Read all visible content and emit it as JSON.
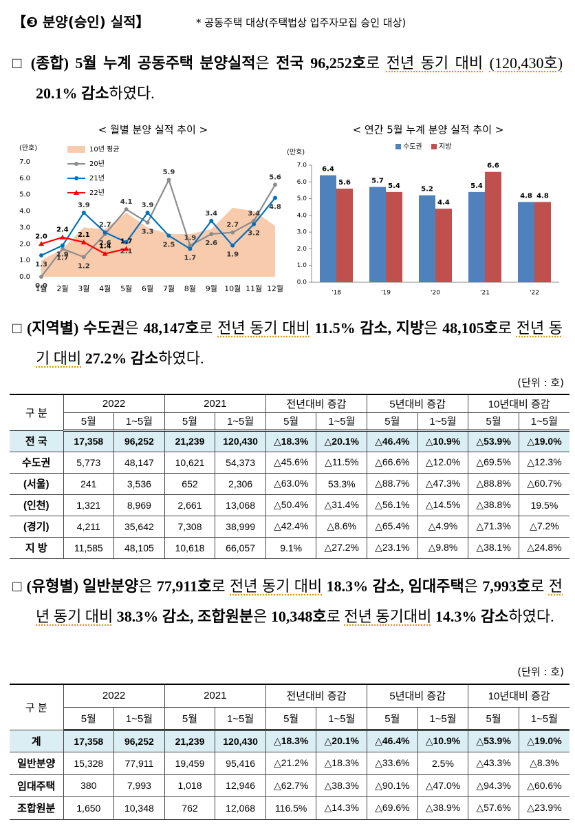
{
  "header": {
    "title": "【❸ 분양(승인) 실적】",
    "note": "* 공동주택 대상(주택법상 입주자모집 승인 대상)"
  },
  "paragraphs": [
    [
      "□",
      "(종합) 5월 누계 공동주택 분양실적",
      "은",
      "전국 96,252호",
      "로",
      "전년 동기 대비",
      "(120,430호)",
      "20.1% 감소",
      "하였다."
    ],
    [
      "□",
      "(지역별) 수도권",
      "은",
      "48,147호",
      "로",
      "전년 동기 대비",
      "11.5% 감소, 지방",
      "은",
      "48,105호",
      "로",
      "전년 동기 대비",
      "27.2% 감소",
      "하였다."
    ],
    [
      "□",
      "(유형별) 일반분양",
      "은",
      "77,911호",
      "로",
      "전년 동기 대비",
      "18.3% 감소, 임대주택",
      "은",
      "7,993호",
      "로",
      "전년 동기 대비",
      "38.3% 감소, 조합원분",
      "은",
      "10,348호",
      "로",
      "전년 동기대비",
      "14.3% 감소",
      "하였다."
    ]
  ],
  "chart_data": [
    {
      "type": "line",
      "title": "< 월별 분양 실적 추이 >",
      "y_label": "(만호)",
      "categories": [
        "1월",
        "2월",
        "3월",
        "4월",
        "5월",
        "6월",
        "7월",
        "8월",
        "9월",
        "10월",
        "11월",
        "12월"
      ],
      "ylim": [
        0,
        7
      ],
      "yticks": [
        {
          "value": 0,
          "label": "0.0"
        },
        {
          "value": 1,
          "label": "1.0"
        },
        {
          "value": 2,
          "label": "2.0"
        },
        {
          "value": 3,
          "label": "3.0"
        },
        {
          "value": 4,
          "label": "4.0"
        },
        {
          "value": 5,
          "label": "5.0"
        },
        {
          "value": 6,
          "label": "6.0"
        },
        {
          "value": 7,
          "label": "7.0"
        }
      ],
      "series": [
        {
          "name": "10년 평균",
          "type": "area",
          "color": "#f8cbad",
          "values": [
            1.0,
            1.7,
            3.0,
            2.9,
            3.9,
            3.0,
            2.6,
            2.6,
            2.9,
            4.2,
            4.0,
            3.1
          ]
        },
        {
          "name": "20년",
          "type": "line",
          "marker": "circle",
          "color": "#8c8c8c",
          "values": [
            0.0,
            1.7,
            1.2,
            2.6,
            4.1,
            3.3,
            5.9,
            1.9,
            2.6,
            2.7,
            3.4,
            5.6
          ],
          "value_labels": [
            "0.0",
            "1.7",
            "1.2",
            "2.6",
            "4.1",
            "3.3",
            "5.9",
            "1.9",
            "2.6",
            "2.7",
            "3.4",
            "5.6"
          ]
        },
        {
          "name": "21년",
          "type": "line",
          "marker": "circle",
          "color": "#0070c0",
          "values": [
            1.3,
            1.9,
            3.9,
            2.7,
            2.1,
            3.9,
            2.5,
            1.7,
            3.4,
            1.9,
            3.2,
            4.8
          ],
          "value_labels": [
            "1.3",
            "1.9",
            "3.9",
            "2.7",
            "2.1",
            "3.9",
            "2.5",
            "1.7",
            "3.4",
            "1.9",
            "3.2",
            "4.8"
          ]
        },
        {
          "name": "22년",
          "type": "line",
          "marker": "triangle",
          "color": "#ff0000",
          "values": [
            2.0,
            2.4,
            2.1,
            1.4,
            1.7,
            null,
            null,
            null,
            null,
            null,
            null,
            null
          ],
          "value_labels": [
            "2.0",
            "2.4",
            "2.1",
            "1.4",
            "1.7",
            null,
            null,
            null,
            null,
            null,
            null,
            null
          ]
        }
      ]
    },
    {
      "type": "bar",
      "title": "< 연간 5월 누계 분양 실적 추이 >",
      "y_label": "(만호)",
      "categories": [
        "'18",
        "'19",
        "'20",
        "'21",
        "'22"
      ],
      "ylim": [
        0,
        7
      ],
      "yticks": [
        {
          "value": 0,
          "label": "0.0"
        },
        {
          "value": 1,
          "label": "1.0"
        },
        {
          "value": 2,
          "label": "2.0"
        },
        {
          "value": 3,
          "label": "3.0"
        },
        {
          "value": 4,
          "label": "4.0"
        },
        {
          "value": 5,
          "label": "5.0"
        },
        {
          "value": 6,
          "label": "6.0"
        },
        {
          "value": 7,
          "label": "7.0"
        }
      ],
      "series": [
        {
          "name": "수도권",
          "color": "#4f81bd",
          "values": [
            6.4,
            5.7,
            5.2,
            5.4,
            4.8
          ]
        },
        {
          "name": "지방",
          "color": "#c0504d",
          "values": [
            5.6,
            5.4,
            4.4,
            6.6,
            4.8
          ]
        }
      ]
    }
  ],
  "tables": [
    {
      "unit": "(단위 : 호)",
      "header": [
        "구 분",
        "2022",
        "2021",
        "전년대비 증감",
        "5년대비 증감",
        "10년대비 증감"
      ],
      "subheader": [
        "5월",
        "1~5월",
        "5월",
        "1~5월",
        "5월",
        "1~5월",
        "5월",
        "1~5월",
        "5월",
        "1~5월"
      ],
      "rows": [
        [
          "전 국",
          "17,358",
          "96,252",
          "21,239",
          "120,430",
          "△18.3%",
          "△20.1%",
          "△46.4%",
          "△10.9%",
          "△53.9%",
          "△19.0%"
        ],
        [
          "수도권",
          "5,773",
          "48,147",
          "10,621",
          "54,373",
          "△45.6%",
          "△11.5%",
          "△66.6%",
          "△12.0%",
          "△69.5%",
          "△12.3%"
        ],
        [
          "(서울)",
          "241",
          "3,536",
          "652",
          "2,306",
          "△63.0%",
          "53.3%",
          "△88.7%",
          "△47.3%",
          "△88.8%",
          "△60.7%"
        ],
        [
          "(인천)",
          "1,321",
          "8,969",
          "2,661",
          "13,068",
          "△50.4%",
          "△31.4%",
          "△56.1%",
          "△14.5%",
          "△38.8%",
          "19.5%"
        ],
        [
          "(경기)",
          "4,211",
          "35,642",
          "7,308",
          "38,999",
          "△42.4%",
          "△8.6%",
          "△65.4%",
          "△4.9%",
          "△71.3%",
          "△7.2%"
        ],
        [
          "지 방",
          "11,585",
          "48,105",
          "10,618",
          "66,057",
          "9.1%",
          "△27.2%",
          "△23.1%",
          "△9.8%",
          "△38.1%",
          "△24.8%"
        ]
      ]
    },
    {
      "unit": "(단위 : 호)",
      "header": [
        "구 분",
        "2022",
        "2021",
        "전년대비 증감",
        "5년대비 증감",
        "10년대비 증감"
      ],
      "subheader": [
        "5월",
        "1~5월",
        "5월",
        "1~5월",
        "5월",
        "1~5월",
        "5월",
        "1~5월",
        "5월",
        "1~5월"
      ],
      "rows": [
        [
          "계",
          "17,358",
          "96,252",
          "21,239",
          "120,430",
          "△18.3%",
          "△20.1%",
          "△46.4%",
          "△10.9%",
          "△53.9%",
          "△19.0%"
        ],
        [
          "일반분양",
          "15,328",
          "77,911",
          "19,459",
          "95,416",
          "△21.2%",
          "△18.3%",
          "△33.6%",
          "2.5%",
          "△43.3%",
          "△8.3%"
        ],
        [
          "임대주택",
          "380",
          "7,993",
          "1,018",
          "12,946",
          "△62.7%",
          "△38.3%",
          "△90.1%",
          "△47.0%",
          "△94.3%",
          "△60.6%"
        ],
        [
          "조합원분",
          "1,650",
          "10,348",
          "762",
          "12,068",
          "116.5%",
          "△14.3%",
          "△69.6%",
          "△38.9%",
          "△57.6%",
          "△23.9%"
        ]
      ]
    }
  ]
}
